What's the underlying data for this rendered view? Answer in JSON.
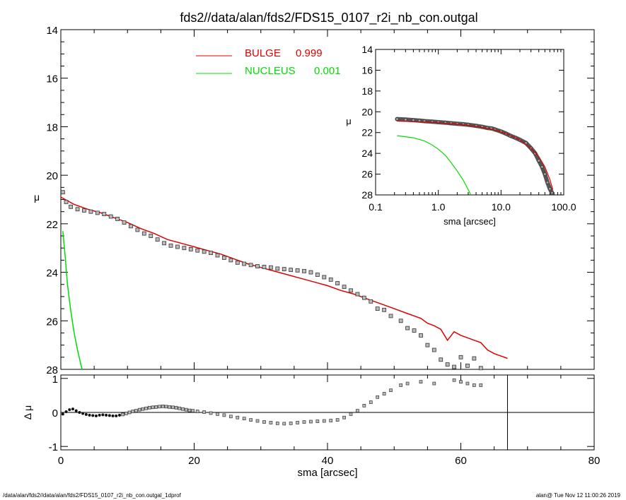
{
  "title": "fds2//data/alan/fds2/FDS15_0107_r2i_nb_con.outgal",
  "footer": {
    "left": "/data/alan/fds2//data/alan/fds2/FDS15_0107_r2i_nb_con.outgal_1dprof",
    "right": "alan@  Tue Nov 12 11:00:26 2019"
  },
  "legend": {
    "bulge": {
      "name": "BULGE",
      "value": "0.999",
      "color": "#e00000"
    },
    "nucleus": {
      "name": "NUCLEUS",
      "value": "0.001",
      "color": "#00dd00"
    }
  },
  "chart_data": [
    {
      "type": "line",
      "panel": "main",
      "xlabel": "",
      "ylabel": "μ",
      "xlim": [
        0,
        80
      ],
      "ylim": [
        28,
        14
      ],
      "xticks": [
        "0",
        "20",
        "40",
        "60",
        "80"
      ],
      "yticks": [
        "14",
        "16",
        "18",
        "20",
        "22",
        "24",
        "26",
        "28"
      ],
      "series": [
        {
          "name": "data",
          "style": "markers",
          "x": [
            0.3,
            0.8,
            1.5,
            2.5,
            3.5,
            4.5,
            5.5,
            6.5,
            7.5,
            8.5,
            9.5,
            10.5,
            11.5,
            12.5,
            13.5,
            14.5,
            15.5,
            16.5,
            17.5,
            18.5,
            19.5,
            20.5,
            21.5,
            22.5,
            23.5,
            24.5,
            25.5,
            26.5,
            27.5,
            28.5,
            29.5,
            30.5,
            31.5,
            32.5,
            33.5,
            34.5,
            35.5,
            36.5,
            37.5,
            38.5,
            39.5,
            40.5,
            41.5,
            42.5,
            43.5,
            44.5,
            45.5,
            46.5,
            47.5,
            48.5,
            49.5,
            51,
            52,
            53,
            54,
            55,
            56,
            57,
            58,
            59,
            60,
            61,
            62,
            63
          ],
          "y": [
            20.7,
            21.1,
            21.3,
            21.4,
            21.45,
            21.5,
            21.55,
            21.6,
            21.7,
            21.8,
            21.95,
            22.1,
            22.25,
            22.4,
            22.5,
            22.65,
            22.8,
            22.9,
            22.95,
            23.0,
            23.05,
            23.1,
            23.15,
            23.2,
            23.3,
            23.4,
            23.5,
            23.6,
            23.65,
            23.7,
            23.75,
            23.78,
            23.8,
            23.85,
            23.87,
            23.9,
            23.92,
            23.95,
            24.0,
            24.1,
            24.2,
            24.3,
            24.45,
            24.6,
            24.75,
            24.9,
            25.05,
            25.2,
            25.5,
            25.55,
            25.8,
            26.0,
            26.3,
            26.4,
            26.6,
            27.0,
            27.2,
            27.6,
            27.8,
            27.9,
            27.5,
            27.85,
            27.55,
            27.95
          ]
        },
        {
          "name": "BULGE",
          "style": "line",
          "x": [
            0,
            2,
            4,
            6,
            8,
            10,
            12,
            14,
            16,
            18,
            20,
            22,
            24,
            26,
            28,
            30,
            32,
            34,
            36,
            38,
            40,
            42,
            44,
            46,
            48,
            50,
            52,
            54,
            55,
            56,
            57,
            58,
            59,
            60,
            61,
            62,
            63,
            64,
            65,
            66,
            67
          ],
          "y": [
            20.9,
            21.2,
            21.4,
            21.55,
            21.75,
            21.95,
            22.2,
            22.4,
            22.65,
            22.8,
            22.95,
            23.1,
            23.25,
            23.45,
            23.65,
            23.8,
            23.95,
            24.1,
            24.25,
            24.4,
            24.55,
            24.75,
            24.9,
            25.1,
            25.3,
            25.5,
            25.7,
            25.9,
            26.1,
            26.2,
            26.35,
            26.8,
            26.45,
            26.6,
            26.7,
            26.8,
            26.9,
            27.2,
            27.35,
            27.45,
            27.55
          ]
        },
        {
          "name": "NUCLEUS",
          "style": "line",
          "x": [
            0.3,
            0.6,
            1.0,
            1.5,
            2.0,
            2.5,
            3.0,
            3.2
          ],
          "y": [
            22.3,
            23.2,
            24.5,
            25.6,
            26.5,
            27.2,
            27.8,
            28.0
          ]
        }
      ]
    },
    {
      "type": "scatter",
      "panel": "residual",
      "xlabel": "sma [arcsec]",
      "ylabel": "Δ μ",
      "xlim": [
        0,
        80
      ],
      "ylim": [
        -1.1,
        1.1
      ],
      "xticks": [
        "0",
        "20",
        "40",
        "60",
        "80"
      ],
      "yticks": [
        "-1",
        "0",
        "1"
      ],
      "reference_line_y": 0,
      "vertical_marker_x": 67,
      "x": [
        0.3,
        0.8,
        1.3,
        1.8,
        2.3,
        2.8,
        3.3,
        3.8,
        4.3,
        4.8,
        5.3,
        5.8,
        6.3,
        6.8,
        7.3,
        7.8,
        8.3,
        8.8,
        9.3,
        9.8,
        10.3,
        10.8,
        11.3,
        11.8,
        12.3,
        12.8,
        13.3,
        13.8,
        14.3,
        14.8,
        15.3,
        15.8,
        16.3,
        16.8,
        17.3,
        17.8,
        18.3,
        18.8,
        19.3,
        19.8,
        20.5,
        21.5,
        22.5,
        23.5,
        24.5,
        25.5,
        26.5,
        27.5,
        28.5,
        29.5,
        30.5,
        31.5,
        32.5,
        33.5,
        34.5,
        35.5,
        36.5,
        37.5,
        38.5,
        39.5,
        40.5,
        41.5,
        42.5,
        43.5,
        44.5,
        45.5,
        46.5,
        47.5,
        48.5,
        49.5,
        51,
        52,
        54,
        56,
        59,
        60,
        61,
        62,
        63
      ],
      "y": [
        -0.05,
        0.02,
        0.08,
        0.1,
        0.05,
        0.0,
        -0.03,
        -0.06,
        -0.08,
        -0.09,
        -0.1,
        -0.08,
        -0.07,
        -0.08,
        -0.09,
        -0.1,
        -0.1,
        -0.08,
        -0.06,
        -0.03,
        0.0,
        0.03,
        0.05,
        0.08,
        0.1,
        0.12,
        0.14,
        0.15,
        0.16,
        0.17,
        0.18,
        0.17,
        0.16,
        0.15,
        0.14,
        0.12,
        0.1,
        0.08,
        0.06,
        0.05,
        0.03,
        0.01,
        -0.02,
        -0.05,
        -0.08,
        -0.12,
        -0.15,
        -0.18,
        -0.22,
        -0.25,
        -0.28,
        -0.3,
        -0.32,
        -0.33,
        -0.32,
        -0.3,
        -0.28,
        -0.27,
        -0.26,
        -0.25,
        -0.24,
        -0.22,
        -0.15,
        -0.05,
        0.05,
        0.2,
        0.3,
        0.45,
        0.55,
        0.65,
        0.8,
        0.85,
        0.9,
        0.85,
        0.95,
        0.9,
        0.85,
        0.8,
        0.8
      ]
    },
    {
      "type": "line",
      "panel": "inset",
      "xscale": "log",
      "xlabel": "sma [arcsec]",
      "ylabel": "μ",
      "xlim": [
        0.1,
        100
      ],
      "ylim": [
        28,
        14
      ],
      "xticks": [
        "0.1",
        "1.0",
        "10.0",
        "100.0"
      ],
      "yticks": [
        "14",
        "16",
        "18",
        "20",
        "22",
        "24",
        "26",
        "28"
      ],
      "series": [
        {
          "name": "data",
          "style": "markers",
          "x": [
            0.22,
            0.3,
            0.4,
            0.5,
            0.6,
            0.8,
            1.0,
            1.3,
            1.6,
            2.0,
            2.5,
            3.0,
            4.0,
            5.0,
            6.0,
            7.0,
            8.0,
            10,
            12,
            14,
            17,
            20,
            25,
            30,
            35,
            40,
            45,
            50,
            55,
            60,
            65
          ],
          "y": [
            20.7,
            20.75,
            20.8,
            20.85,
            20.9,
            20.95,
            21.0,
            21.05,
            21.1,
            21.15,
            21.2,
            21.25,
            21.35,
            21.45,
            21.55,
            21.6,
            21.7,
            21.9,
            22.1,
            22.3,
            22.5,
            22.7,
            23.0,
            23.5,
            24.0,
            24.7,
            25.3,
            26.0,
            26.8,
            27.4,
            27.8
          ]
        },
        {
          "name": "BULGE",
          "style": "line",
          "x": [
            0.22,
            0.4,
            0.7,
            1.0,
            2.0,
            3.0,
            5.0,
            8.0,
            12,
            20,
            30,
            40,
            50,
            60,
            67
          ],
          "y": [
            20.9,
            20.95,
            21.0,
            21.05,
            21.2,
            21.3,
            21.5,
            21.75,
            22.1,
            22.7,
            23.5,
            24.3,
            25.3,
            26.5,
            27.5
          ]
        },
        {
          "name": "NUCLEUS",
          "style": "line",
          "x": [
            0.22,
            0.4,
            0.6,
            0.8,
            1.0,
            1.3,
            1.6,
            2.0,
            2.5,
            3.0,
            3.3
          ],
          "y": [
            22.3,
            22.5,
            22.8,
            23.2,
            23.6,
            24.2,
            24.9,
            25.7,
            26.6,
            27.5,
            28.0
          ]
        }
      ]
    }
  ]
}
